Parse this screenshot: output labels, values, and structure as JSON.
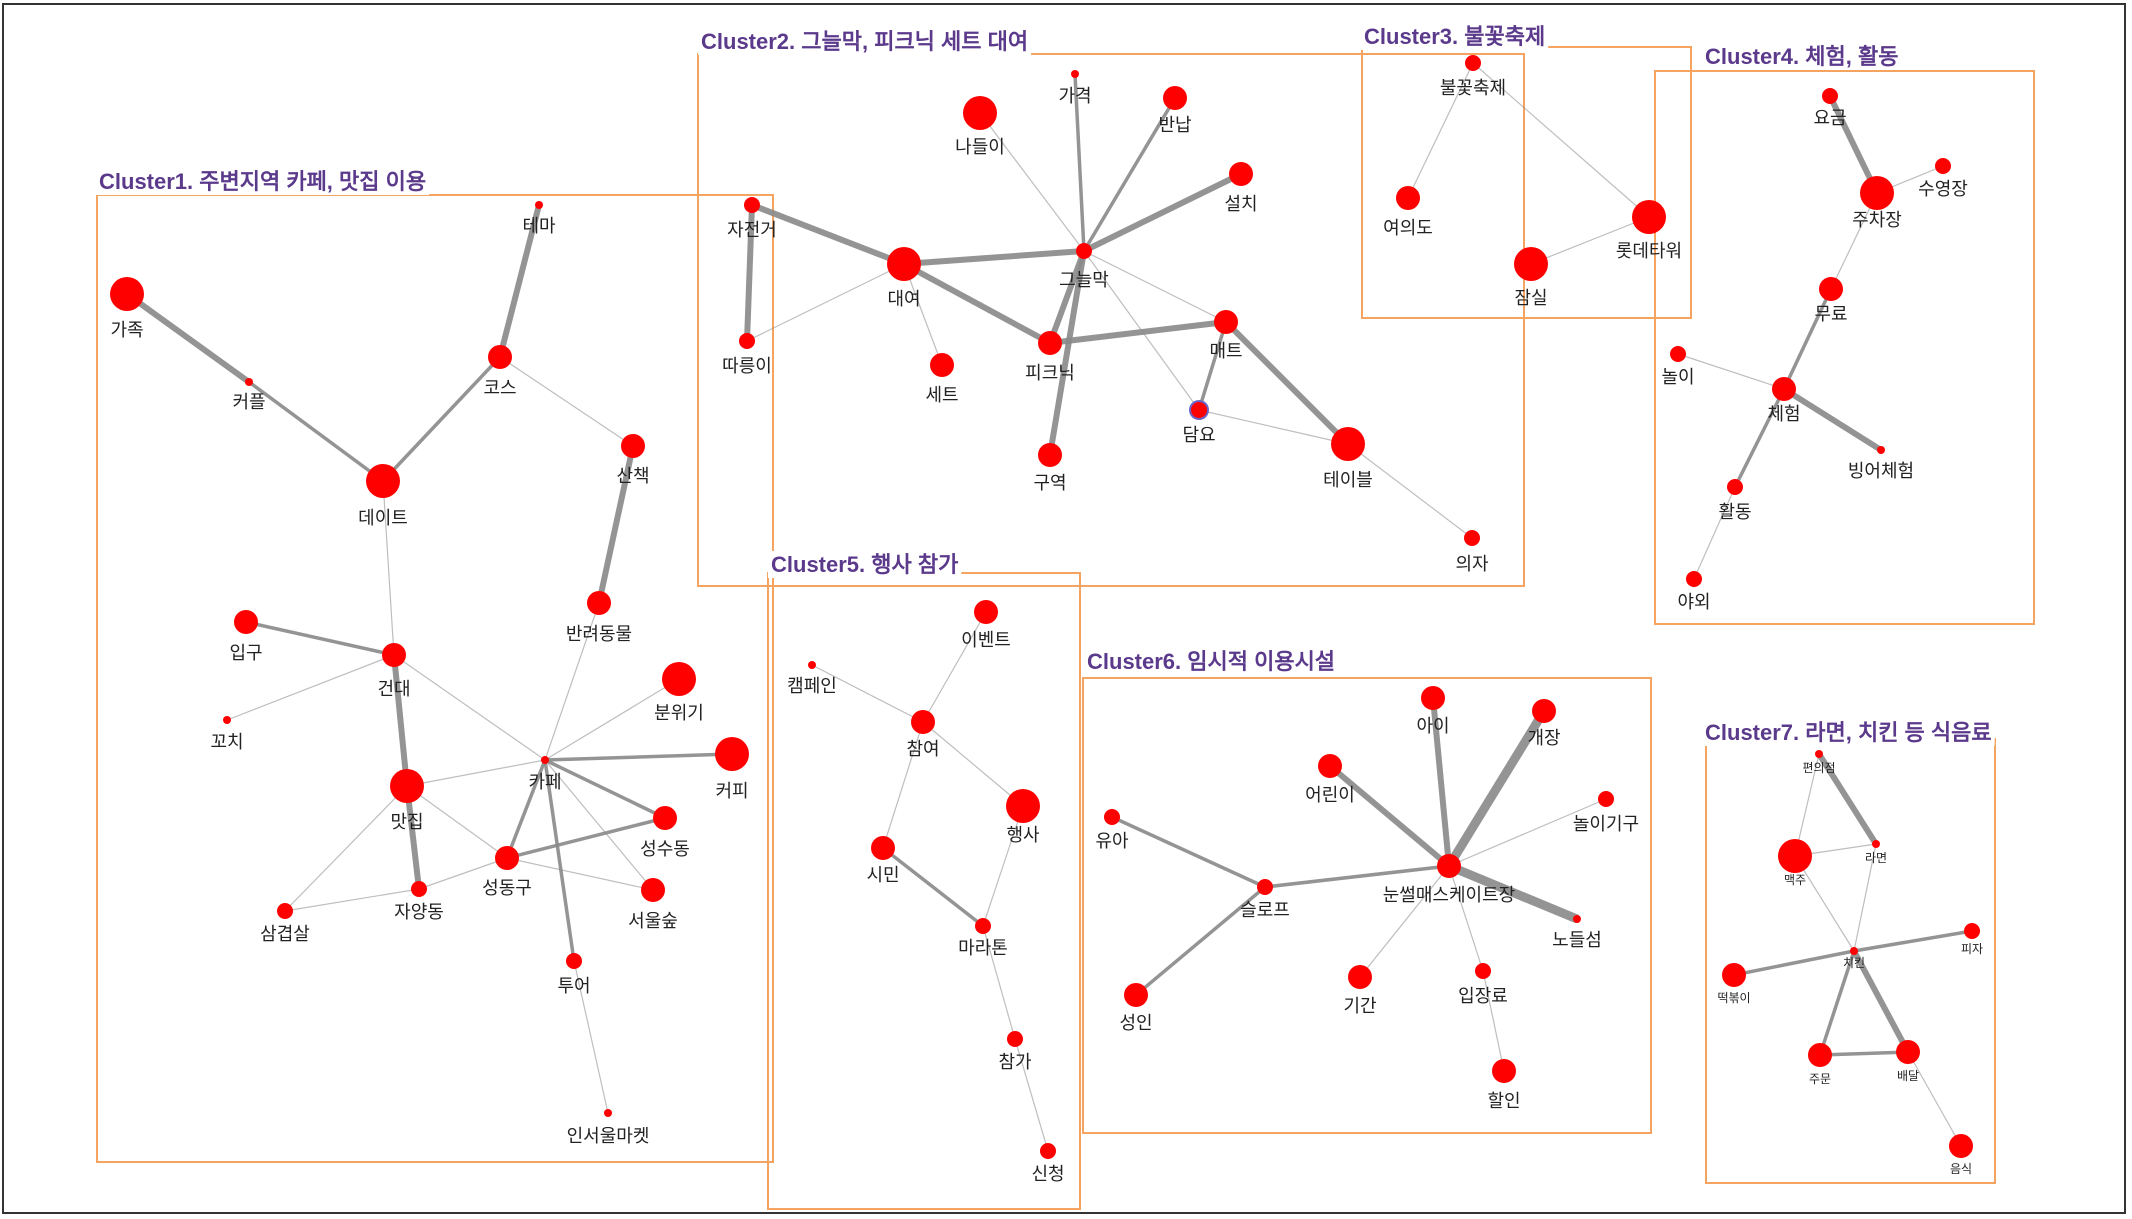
{
  "colors": {
    "frame": "#333333",
    "cluster_border": "#f4a460",
    "title_text": "#5b3a8c",
    "node_fill": "#ff0000",
    "highlight_ring": "#6b63c6",
    "edge": "#888888"
  },
  "clusters": [
    {
      "id": "c1",
      "title": "Cluster1. 주변지역 카페, 맛집 이용"
    },
    {
      "id": "c2",
      "title": "Cluster2. 그늘막, 피크닉 세트 대여"
    },
    {
      "id": "c3",
      "title": "Cluster3. 불꽃축제"
    },
    {
      "id": "c4",
      "title": "Cluster4. 체험, 활동"
    },
    {
      "id": "c5",
      "title": "Cluster5. 행사 참가"
    },
    {
      "id": "c6",
      "title": "Cluster6. 임시적 이용시설"
    },
    {
      "id": "c7",
      "title": "Cluster7. 라면, 치킨 등 식음료"
    }
  ],
  "nodes": [
    {
      "id": "n1_family",
      "cluster": "c1",
      "label": "가족",
      "size": "large"
    },
    {
      "id": "n1_couple",
      "cluster": "c1",
      "label": "커플",
      "size": "tiny"
    },
    {
      "id": "n1_theme",
      "cluster": "c1",
      "label": "테마",
      "size": "tiny"
    },
    {
      "id": "n1_course",
      "cluster": "c1",
      "label": "코스",
      "size": "medium"
    },
    {
      "id": "n1_date",
      "cluster": "c1",
      "label": "데이트",
      "size": "large"
    },
    {
      "id": "n1_walk",
      "cluster": "c1",
      "label": "산책",
      "size": "medium"
    },
    {
      "id": "n1_pet",
      "cluster": "c1",
      "label": "반려동물",
      "size": "medium"
    },
    {
      "id": "n1_entrance",
      "cluster": "c1",
      "label": "입구",
      "size": "medium"
    },
    {
      "id": "n1_kondae",
      "cluster": "c1",
      "label": "건대",
      "size": "medium"
    },
    {
      "id": "n1_mood",
      "cluster": "c1",
      "label": "분위기",
      "size": "large"
    },
    {
      "id": "n1_skewer",
      "cluster": "c1",
      "label": "꼬치",
      "size": "tiny"
    },
    {
      "id": "n1_cafe",
      "cluster": "c1",
      "label": "카페",
      "size": "tiny"
    },
    {
      "id": "n1_coffee",
      "cluster": "c1",
      "label": "커피",
      "size": "large"
    },
    {
      "id": "n1_restaurant",
      "cluster": "c1",
      "label": "맛집",
      "size": "large"
    },
    {
      "id": "n1_seongsudong",
      "cluster": "c1",
      "label": "성수동",
      "size": "medium"
    },
    {
      "id": "n1_seongdonggu",
      "cluster": "c1",
      "label": "성동구",
      "size": "medium"
    },
    {
      "id": "n1_seoulforest",
      "cluster": "c1",
      "label": "서울숲",
      "size": "medium"
    },
    {
      "id": "n1_jayangdong",
      "cluster": "c1",
      "label": "자양동",
      "size": "small"
    },
    {
      "id": "n1_porkbelly",
      "cluster": "c1",
      "label": "삼겹살",
      "size": "small"
    },
    {
      "id": "n1_tour",
      "cluster": "c1",
      "label": "투어",
      "size": "small"
    },
    {
      "id": "n1_market",
      "cluster": "c1",
      "label": "인서울마켓",
      "size": "tiny"
    },
    {
      "id": "n2_price",
      "cluster": "c2",
      "label": "가격",
      "size": "tiny"
    },
    {
      "id": "n2_outing",
      "cluster": "c2",
      "label": "나들이",
      "size": "large"
    },
    {
      "id": "n2_return",
      "cluster": "c2",
      "label": "반납",
      "size": "medium"
    },
    {
      "id": "n2_install",
      "cluster": "c2",
      "label": "설치",
      "size": "medium"
    },
    {
      "id": "n2_bicycle",
      "cluster": "c2",
      "label": "자전거",
      "size": "small"
    },
    {
      "id": "n2_rental",
      "cluster": "c2",
      "label": "대여",
      "size": "large"
    },
    {
      "id": "n2_shade",
      "cluster": "c2",
      "label": "그늘막",
      "size": "small"
    },
    {
      "id": "n2_tandem",
      "cluster": "c2",
      "label": "따릉이",
      "size": "small"
    },
    {
      "id": "n2_set",
      "cluster": "c2",
      "label": "세트",
      "size": "medium"
    },
    {
      "id": "n2_picnic",
      "cluster": "c2",
      "label": "피크닉",
      "size": "medium"
    },
    {
      "id": "n2_mat",
      "cluster": "c2",
      "label": "매트",
      "size": "medium"
    },
    {
      "id": "n2_blanket",
      "cluster": "c2",
      "label": "담요",
      "size": "small",
      "highlight": true
    },
    {
      "id": "n2_table",
      "cluster": "c2",
      "label": "테이블",
      "size": "large"
    },
    {
      "id": "n2_zone",
      "cluster": "c2",
      "label": "구역",
      "size": "medium"
    },
    {
      "id": "n2_chair",
      "cluster": "c2",
      "label": "의자",
      "size": "small"
    },
    {
      "id": "n3_fireworks",
      "cluster": "c3",
      "label": "불꽃축제",
      "size": "small"
    },
    {
      "id": "n3_yeouido",
      "cluster": "c3",
      "label": "여의도",
      "size": "medium"
    },
    {
      "id": "n3_lotte",
      "cluster": "c3",
      "label": "롯데타워",
      "size": "large"
    },
    {
      "id": "n3_jamsil",
      "cluster": "c3",
      "label": "잠실",
      "size": "large"
    },
    {
      "id": "n4_fee",
      "cluster": "c4",
      "label": "요금",
      "size": "small"
    },
    {
      "id": "n4_pool",
      "cluster": "c4",
      "label": "수영장",
      "size": "small"
    },
    {
      "id": "n4_parking",
      "cluster": "c4",
      "label": "주차장",
      "size": "large"
    },
    {
      "id": "n4_free",
      "cluster": "c4",
      "label": "무료",
      "size": "medium"
    },
    {
      "id": "n4_play",
      "cluster": "c4",
      "label": "놀이",
      "size": "small"
    },
    {
      "id": "n4_experience",
      "cluster": "c4",
      "label": "체험",
      "size": "medium"
    },
    {
      "id": "n4_fishing",
      "cluster": "c4",
      "label": "빙어체험",
      "size": "tiny"
    },
    {
      "id": "n4_activity",
      "cluster": "c4",
      "label": "활동",
      "size": "small"
    },
    {
      "id": "n4_outdoor",
      "cluster": "c4",
      "label": "야외",
      "size": "small"
    },
    {
      "id": "n5_event",
      "cluster": "c5",
      "label": "이벤트",
      "size": "medium"
    },
    {
      "id": "n5_campaign",
      "cluster": "c5",
      "label": "캠페인",
      "size": "tiny"
    },
    {
      "id": "n5_participation",
      "cluster": "c5",
      "label": "참여",
      "size": "medium"
    },
    {
      "id": "n5_festival",
      "cluster": "c5",
      "label": "행사",
      "size": "large"
    },
    {
      "id": "n5_citizen",
      "cluster": "c5",
      "label": "시민",
      "size": "medium"
    },
    {
      "id": "n5_marathon",
      "cluster": "c5",
      "label": "마라톤",
      "size": "small"
    },
    {
      "id": "n5_join",
      "cluster": "c5",
      "label": "참가",
      "size": "small"
    },
    {
      "id": "n5_apply",
      "cluster": "c5",
      "label": "신청",
      "size": "small"
    },
    {
      "id": "n6_child",
      "cluster": "c6",
      "label": "아이",
      "size": "medium"
    },
    {
      "id": "n6_opening",
      "cluster": "c6",
      "label": "개장",
      "size": "medium"
    },
    {
      "id": "n6_kids",
      "cluster": "c6",
      "label": "어린이",
      "size": "medium"
    },
    {
      "id": "n6_playequip",
      "cluster": "c6",
      "label": "놀이기구",
      "size": "small"
    },
    {
      "id": "n6_toddler",
      "cluster": "c6",
      "label": "유아",
      "size": "small"
    },
    {
      "id": "n6_slope",
      "cluster": "c6",
      "label": "슬로프",
      "size": "small"
    },
    {
      "id": "n6_snowsled",
      "cluster": "c6",
      "label": "눈썰매스케이트장",
      "size": "medium"
    },
    {
      "id": "n6_nodeul",
      "cluster": "c6",
      "label": "노들섬",
      "size": "tiny"
    },
    {
      "id": "n6_adult",
      "cluster": "c6",
      "label": "성인",
      "size": "medium"
    },
    {
      "id": "n6_period",
      "cluster": "c6",
      "label": "기간",
      "size": "medium"
    },
    {
      "id": "n6_admission",
      "cluster": "c6",
      "label": "입장료",
      "size": "small"
    },
    {
      "id": "n6_discount",
      "cluster": "c6",
      "label": "할인",
      "size": "medium"
    },
    {
      "id": "n7_convenience",
      "cluster": "c7",
      "label": "편의점",
      "size": "tiny"
    },
    {
      "id": "n7_beer",
      "cluster": "c7",
      "label": "맥주",
      "size": "large"
    },
    {
      "id": "n7_ramen",
      "cluster": "c7",
      "label": "라면",
      "size": "tiny"
    },
    {
      "id": "n7_pizza",
      "cluster": "c7",
      "label": "피자",
      "size": "small"
    },
    {
      "id": "n7_tteokbokki",
      "cluster": "c7",
      "label": "떡볶이",
      "size": "medium"
    },
    {
      "id": "n7_chicken",
      "cluster": "c7",
      "label": "치킨",
      "size": "tiny"
    },
    {
      "id": "n7_order",
      "cluster": "c7",
      "label": "주문",
      "size": "medium"
    },
    {
      "id": "n7_delivery",
      "cluster": "c7",
      "label": "배달",
      "size": "medium"
    },
    {
      "id": "n7_food",
      "cluster": "c7",
      "label": "음식",
      "size": "medium"
    }
  ],
  "edges": [
    {
      "from": "n1_family",
      "to": "n1_couple",
      "weight": 3
    },
    {
      "from": "n1_couple",
      "to": "n1_date",
      "weight": 2
    },
    {
      "from": "n1_theme",
      "to": "n1_course",
      "weight": 3
    },
    {
      "from": "n1_course",
      "to": "n1_date",
      "weight": 2
    },
    {
      "from": "n1_course",
      "to": "n1_walk",
      "weight": 1
    },
    {
      "from": "n1_walk",
      "to": "n1_pet",
      "weight": 3
    },
    {
      "from": "n1_date",
      "to": "n1_kondae",
      "weight": 1
    },
    {
      "from": "n1_entrance",
      "to": "n1_kondae",
      "weight": 2
    },
    {
      "from": "n1_skewer",
      "to": "n1_kondae",
      "weight": 1
    },
    {
      "from": "n1_kondae",
      "to": "n1_restaurant",
      "weight": 3
    },
    {
      "from": "n1_kondae",
      "to": "n1_cafe",
      "weight": 1
    },
    {
      "from": "n1_pet",
      "to": "n1_cafe",
      "weight": 1
    },
    {
      "from": "n1_mood",
      "to": "n1_cafe",
      "weight": 1
    },
    {
      "from": "n1_coffee",
      "to": "n1_cafe",
      "weight": 2
    },
    {
      "from": "n1_cafe",
      "to": "n1_restaurant",
      "weight": 1
    },
    {
      "from": "n1_cafe",
      "to": "n1_seongsudong",
      "weight": 2
    },
    {
      "from": "n1_cafe",
      "to": "n1_seongdonggu",
      "weight": 2
    },
    {
      "from": "n1_cafe",
      "to": "n1_seoulforest",
      "weight": 1
    },
    {
      "from": "n1_cafe",
      "to": "n1_tour",
      "weight": 2
    },
    {
      "from": "n1_restaurant",
      "to": "n1_jayangdong",
      "weight": 3
    },
    {
      "from": "n1_restaurant",
      "to": "n1_porkbelly",
      "weight": 1
    },
    {
      "from": "n1_restaurant",
      "to": "n1_seongdonggu",
      "weight": 1
    },
    {
      "from": "n1_porkbelly",
      "to": "n1_jayangdong",
      "weight": 1
    },
    {
      "from": "n1_jayangdong",
      "to": "n1_seongdonggu",
      "weight": 1
    },
    {
      "from": "n1_seongdonggu",
      "to": "n1_seongsudong",
      "weight": 2
    },
    {
      "from": "n1_seongdonggu",
      "to": "n1_seoulforest",
      "weight": 1
    },
    {
      "from": "n1_tour",
      "to": "n1_market",
      "weight": 1
    },
    {
      "from": "n2_price",
      "to": "n2_shade",
      "weight": 2
    },
    {
      "from": "n2_outing",
      "to": "n2_shade",
      "weight": 1
    },
    {
      "from": "n2_return",
      "to": "n2_shade",
      "weight": 2
    },
    {
      "from": "n2_install",
      "to": "n2_shade",
      "weight": 3
    },
    {
      "from": "n2_bicycle",
      "to": "n2_rental",
      "weight": 3
    },
    {
      "from": "n2_bicycle",
      "to": "n2_tandem",
      "weight": 3
    },
    {
      "from": "n2_tandem",
      "to": "n2_rental",
      "weight": 1
    },
    {
      "from": "n2_rental",
      "to": "n2_shade",
      "weight": 3
    },
    {
      "from": "n2_rental",
      "to": "n2_set",
      "weight": 1
    },
    {
      "from": "n2_rental",
      "to": "n2_picnic",
      "weight": 3
    },
    {
      "from": "n2_shade",
      "to": "n2_picnic",
      "weight": 3
    },
    {
      "from": "n2_shade",
      "to": "n2_mat",
      "weight": 1
    },
    {
      "from": "n2_shade",
      "to": "n2_zone",
      "weight": 3
    },
    {
      "from": "n2_shade",
      "to": "n2_blanket",
      "weight": 1
    },
    {
      "from": "n2_picnic",
      "to": "n2_mat",
      "weight": 3
    },
    {
      "from": "n2_mat",
      "to": "n2_blanket",
      "weight": 2
    },
    {
      "from": "n2_mat",
      "to": "n2_table",
      "weight": 3
    },
    {
      "from": "n2_blanket",
      "to": "n2_table",
      "weight": 1
    },
    {
      "from": "n2_table",
      "to": "n2_chair",
      "weight": 1
    },
    {
      "from": "n3_fireworks",
      "to": "n3_yeouido",
      "weight": 1
    },
    {
      "from": "n3_fireworks",
      "to": "n3_lotte",
      "weight": 1
    },
    {
      "from": "n3_lotte",
      "to": "n3_jamsil",
      "weight": 1
    },
    {
      "from": "n4_fee",
      "to": "n4_parking",
      "weight": 3
    },
    {
      "from": "n4_pool",
      "to": "n4_parking",
      "weight": 1
    },
    {
      "from": "n4_parking",
      "to": "n4_free",
      "weight": 1
    },
    {
      "from": "n4_free",
      "to": "n4_experience",
      "weight": 2
    },
    {
      "from": "n4_play",
      "to": "n4_experience",
      "weight": 1
    },
    {
      "from": "n4_experience",
      "to": "n4_fishing",
      "weight": 3
    },
    {
      "from": "n4_experience",
      "to": "n4_activity",
      "weight": 2
    },
    {
      "from": "n4_activity",
      "to": "n4_outdoor",
      "weight": 1
    },
    {
      "from": "n5_event",
      "to": "n5_participation",
      "weight": 1
    },
    {
      "from": "n5_campaign",
      "to": "n5_participation",
      "weight": 1
    },
    {
      "from": "n5_participation",
      "to": "n5_festival",
      "weight": 1
    },
    {
      "from": "n5_participation",
      "to": "n5_citizen",
      "weight": 1
    },
    {
      "from": "n5_festival",
      "to": "n5_marathon",
      "weight": 1
    },
    {
      "from": "n5_citizen",
      "to": "n5_marathon",
      "weight": 2
    },
    {
      "from": "n5_marathon",
      "to": "n5_join",
      "weight": 1
    },
    {
      "from": "n5_join",
      "to": "n5_apply",
      "weight": 1
    },
    {
      "from": "n6_child",
      "to": "n6_snowsled",
      "weight": 3
    },
    {
      "from": "n6_opening",
      "to": "n6_snowsled",
      "weight": 4
    },
    {
      "from": "n6_kids",
      "to": "n6_snowsled",
      "weight": 3
    },
    {
      "from": "n6_playequip",
      "to": "n6_snowsled",
      "weight": 1
    },
    {
      "from": "n6_toddler",
      "to": "n6_slope",
      "weight": 2
    },
    {
      "from": "n6_slope",
      "to": "n6_snowsled",
      "weight": 2
    },
    {
      "from": "n6_slope",
      "to": "n6_adult",
      "weight": 2
    },
    {
      "from": "n6_snowsled",
      "to": "n6_nodeul",
      "weight": 4
    },
    {
      "from": "n6_snowsled",
      "to": "n6_period",
      "weight": 1
    },
    {
      "from": "n6_snowsled",
      "to": "n6_admission",
      "weight": 1
    },
    {
      "from": "n6_admission",
      "to": "n6_discount",
      "weight": 1
    },
    {
      "from": "n7_convenience",
      "to": "n7_ramen",
      "weight": 3
    },
    {
      "from": "n7_convenience",
      "to": "n7_beer",
      "weight": 1
    },
    {
      "from": "n7_beer",
      "to": "n7_ramen",
      "weight": 1
    },
    {
      "from": "n7_beer",
      "to": "n7_chicken",
      "weight": 1
    },
    {
      "from": "n7_ramen",
      "to": "n7_chicken",
      "weight": 1
    },
    {
      "from": "n7_pizza",
      "to": "n7_chicken",
      "weight": 2
    },
    {
      "from": "n7_tteokbokki",
      "to": "n7_chicken",
      "weight": 2
    },
    {
      "from": "n7_chicken",
      "to": "n7_order",
      "weight": 2
    },
    {
      "from": "n7_chicken",
      "to": "n7_delivery",
      "weight": 3
    },
    {
      "from": "n7_order",
      "to": "n7_delivery",
      "weight": 2
    },
    {
      "from": "n7_delivery",
      "to": "n7_food",
      "weight": 1
    }
  ]
}
